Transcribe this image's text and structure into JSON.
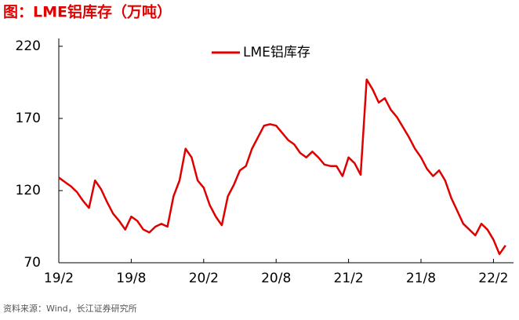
{
  "chart_data": {
    "type": "line",
    "title": "图：LME铝库存（万吨）",
    "source": "资料来源：Wind，长江证券研究所",
    "categories": [
      "19/2",
      null,
      null,
      null,
      null,
      null,
      null,
      null,
      null,
      null,
      null,
      null,
      "19/8",
      null,
      null,
      null,
      null,
      null,
      null,
      null,
      null,
      null,
      null,
      null,
      "20/2",
      null,
      null,
      null,
      null,
      null,
      null,
      null,
      null,
      null,
      null,
      null,
      "20/8",
      null,
      null,
      null,
      null,
      null,
      null,
      null,
      null,
      null,
      null,
      null,
      "21/2",
      null,
      null,
      null,
      null,
      null,
      null,
      null,
      null,
      null,
      null,
      null,
      "21/8",
      null,
      null,
      null,
      null,
      null,
      null,
      null,
      null,
      null,
      null,
      null,
      "22/2",
      null,
      null
    ],
    "series": [
      {
        "name": "LME铝库存",
        "color": "#e00000",
        "values": [
          129,
          126,
          123,
          119,
          113,
          108,
          127,
          121,
          112,
          104,
          99,
          93,
          102,
          99,
          93,
          91,
          95,
          97,
          95,
          116,
          127,
          149,
          143,
          127,
          122,
          110,
          102,
          96,
          116,
          124,
          134,
          137,
          149,
          157,
          165,
          166,
          165,
          160,
          155,
          152,
          146,
          143,
          147,
          143,
          138,
          137,
          137,
          130,
          143,
          139,
          131,
          197,
          190,
          181,
          184,
          176,
          171,
          164,
          157,
          149,
          143,
          135,
          130,
          134,
          127,
          115,
          106,
          97,
          93,
          89,
          97,
          93,
          86,
          76,
          82
        ]
      }
    ],
    "ylim": [
      70,
      220
    ],
    "yticks": [
      70,
      120,
      170,
      220
    ],
    "legend": "top",
    "grid": false
  }
}
